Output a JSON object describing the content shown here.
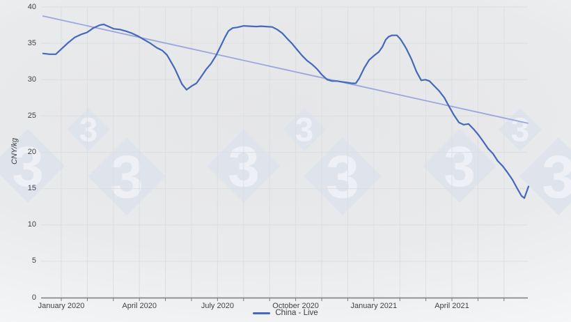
{
  "chart_data": {
    "type": "line",
    "title": "",
    "xlabel": "",
    "ylabel": "CNY/kg",
    "ylim": [
      0,
      40
    ],
    "y_ticks": [
      0,
      5,
      10,
      15,
      20,
      25,
      30,
      35,
      40
    ],
    "grid": true,
    "x_axis": {
      "unit": "months from January 2020",
      "range": [
        -0.78,
        17.92
      ],
      "gridline_every_months": 1,
      "ticks": [
        {
          "m": 0,
          "label": "January 2020"
        },
        {
          "m": 3,
          "label": "April 2020"
        },
        {
          "m": 6,
          "label": "July 2020"
        },
        {
          "m": 9,
          "label": "October 2020"
        },
        {
          "m": 12,
          "label": "January 2021"
        },
        {
          "m": 15,
          "label": "April 2021"
        }
      ]
    },
    "legend": {
      "position": "bottom-center",
      "items": [
        {
          "label": "China - Live",
          "color": "#4468bb"
        }
      ]
    },
    "series": [
      {
        "name": "China - Live",
        "color": "#4468bb",
        "width": 2.2,
        "points": [
          [
            -0.7,
            33.6
          ],
          [
            -0.45,
            33.5
          ],
          [
            -0.21,
            33.5
          ],
          [
            0.03,
            34.3
          ],
          [
            0.27,
            35.1
          ],
          [
            0.51,
            35.8
          ],
          [
            0.75,
            36.2
          ],
          [
            0.99,
            36.5
          ],
          [
            1.23,
            37.1
          ],
          [
            1.47,
            37.5
          ],
          [
            1.63,
            37.6
          ],
          [
            1.82,
            37.3
          ],
          [
            2.01,
            37.0
          ],
          [
            2.25,
            36.9
          ],
          [
            2.46,
            36.7
          ],
          [
            2.7,
            36.4
          ],
          [
            2.94,
            36.0
          ],
          [
            3.18,
            35.5
          ],
          [
            3.42,
            35.0
          ],
          [
            3.66,
            34.4
          ],
          [
            3.88,
            34.0
          ],
          [
            4.06,
            33.4
          ],
          [
            4.22,
            32.4
          ],
          [
            4.36,
            31.5
          ],
          [
            4.49,
            30.5
          ],
          [
            4.63,
            29.4
          ],
          [
            4.81,
            28.6
          ],
          [
            5.0,
            29.1
          ],
          [
            5.19,
            29.5
          ],
          [
            5.37,
            30.4
          ],
          [
            5.56,
            31.4
          ],
          [
            5.75,
            32.2
          ],
          [
            5.94,
            33.3
          ],
          [
            6.12,
            34.6
          ],
          [
            6.28,
            35.8
          ],
          [
            6.42,
            36.7
          ],
          [
            6.58,
            37.1
          ],
          [
            6.77,
            37.2
          ],
          [
            7.01,
            37.4
          ],
          [
            7.25,
            37.35
          ],
          [
            7.49,
            37.3
          ],
          [
            7.67,
            37.35
          ],
          [
            7.86,
            37.3
          ],
          [
            8.1,
            37.25
          ],
          [
            8.29,
            36.9
          ],
          [
            8.48,
            36.4
          ],
          [
            8.66,
            35.7
          ],
          [
            8.85,
            35.0
          ],
          [
            9.06,
            34.1
          ],
          [
            9.25,
            33.3
          ],
          [
            9.44,
            32.6
          ],
          [
            9.63,
            32.1
          ],
          [
            9.81,
            31.5
          ],
          [
            10.0,
            30.7
          ],
          [
            10.21,
            30.0
          ],
          [
            10.4,
            29.8
          ],
          [
            10.59,
            29.8
          ],
          [
            10.78,
            29.7
          ],
          [
            10.96,
            29.6
          ],
          [
            11.15,
            29.5
          ],
          [
            11.31,
            29.5
          ],
          [
            11.44,
            30.2
          ],
          [
            11.63,
            31.6
          ],
          [
            11.82,
            32.7
          ],
          [
            12.01,
            33.3
          ],
          [
            12.19,
            33.8
          ],
          [
            12.33,
            34.5
          ],
          [
            12.46,
            35.5
          ],
          [
            12.57,
            35.9
          ],
          [
            12.7,
            36.1
          ],
          [
            12.89,
            36.1
          ],
          [
            13.02,
            35.6
          ],
          [
            13.16,
            34.8
          ],
          [
            13.26,
            34.2
          ],
          [
            13.45,
            32.8
          ],
          [
            13.64,
            31.1
          ],
          [
            13.82,
            29.9
          ],
          [
            13.98,
            30.0
          ],
          [
            14.14,
            29.8
          ],
          [
            14.33,
            29.1
          ],
          [
            14.52,
            28.4
          ],
          [
            14.71,
            27.5
          ],
          [
            14.89,
            26.3
          ],
          [
            15.08,
            25.1
          ],
          [
            15.27,
            24.1
          ],
          [
            15.45,
            23.8
          ],
          [
            15.64,
            23.9
          ],
          [
            15.83,
            23.2
          ],
          [
            16.02,
            22.4
          ],
          [
            16.2,
            21.5
          ],
          [
            16.39,
            20.5
          ],
          [
            16.58,
            19.8
          ],
          [
            16.76,
            18.8
          ],
          [
            16.95,
            18.1
          ],
          [
            17.14,
            17.2
          ],
          [
            17.33,
            16.2
          ],
          [
            17.51,
            15.0
          ],
          [
            17.67,
            14.0
          ],
          [
            17.78,
            13.7
          ],
          [
            17.94,
            15.3
          ]
        ]
      },
      {
        "name": "linear-trend",
        "color": "#9aa7dc",
        "width": 1.8,
        "points": [
          [
            -0.7,
            38.75
          ],
          [
            17.91,
            24.0
          ]
        ]
      }
    ]
  },
  "watermark": {
    "glyph": "3",
    "diamond_color": "#dfe3ec",
    "glyph_color": "#eef0f5"
  },
  "colors": {
    "series_blue": "#4468bb",
    "trend_blue": "#9aa7dc",
    "axis_line": "#7a7a7a",
    "tick_text": "#3f4245",
    "gridline": "#dcdee1"
  }
}
